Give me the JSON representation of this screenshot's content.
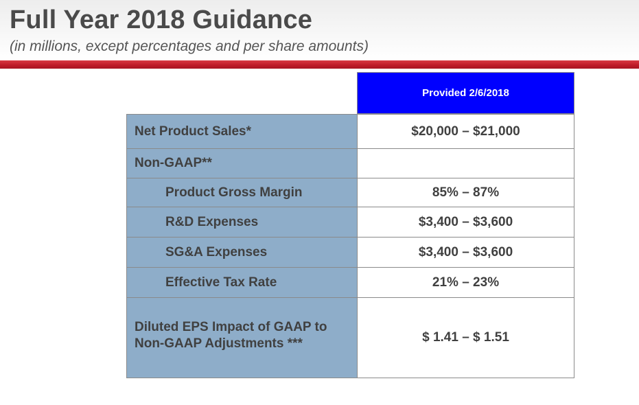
{
  "header": {
    "title": "Full Year 2018 Guidance",
    "subtitle": "(in millions, except percentages and per share amounts)"
  },
  "table": {
    "column_header": "Provided 2/6/2018",
    "rows": [
      {
        "label": "Net Product Sales*",
        "value": "$20,000 – $21,000"
      },
      {
        "label": "Non-GAAP**",
        "value": ""
      },
      {
        "label": "Product Gross Margin",
        "value": "85% – 87%"
      },
      {
        "label": "R&D Expenses",
        "value": "$3,400 – $3,600"
      },
      {
        "label": "SG&A Expenses",
        "value": "$3,400 – $3,600"
      },
      {
        "label": "Effective Tax Rate",
        "value": "21% – 23%"
      },
      {
        "label_line1": "Diluted EPS Impact of GAAP to",
        "label_line2": "Non-GAAP Adjustments ***",
        "value": "$ 1.41 – $ 1.51"
      }
    ]
  },
  "colors": {
    "header_fill": "#0000ff",
    "label_fill": "#8eadc9",
    "accent_band": "#c01c2a",
    "title_text": "#4a4a4a"
  }
}
